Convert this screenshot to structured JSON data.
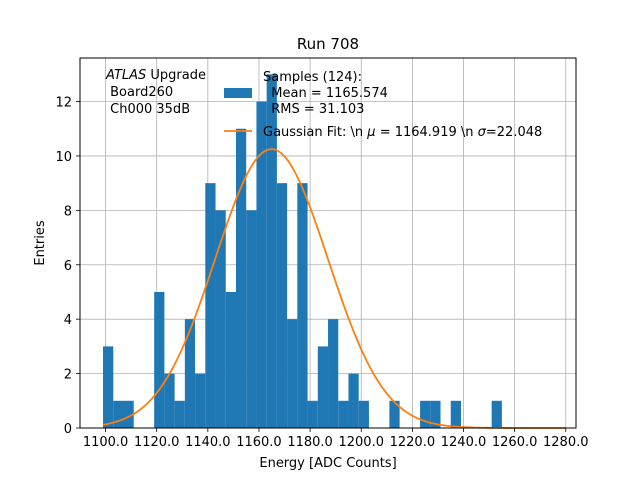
{
  "chart_data": {
    "type": "bar",
    "title": "Run 708",
    "xlabel": "Energy [ADC Counts]",
    "ylabel": "Entries",
    "xlim": [
      1090.0,
      1284.0
    ],
    "ylim": [
      0,
      13.6
    ],
    "grid": true,
    "legend_placement": "top-center",
    "annotation": {
      "italic": "ATLAS",
      "line1_rest": " Upgrade",
      "line2": " Board260",
      "line3": " Ch000 35dB"
    },
    "x_ticks": [
      1100.0,
      1120.0,
      1140.0,
      1160.0,
      1180.0,
      1200.0,
      1220.0,
      1240.0,
      1260.0,
      1280.0
    ],
    "x_tick_labels": [
      "1100.0",
      "1120.0",
      "1140.0",
      "1160.0",
      "1180.0",
      "1200.0",
      "1220.0",
      "1240.0",
      "1260.0",
      "1280.0"
    ],
    "y_ticks": [
      0,
      2,
      4,
      6,
      8,
      10,
      12
    ],
    "y_tick_labels": [
      "0",
      "2",
      "4",
      "6",
      "8",
      "10",
      "12"
    ],
    "bins": {
      "start": 1099.01,
      "width": 4.0,
      "counts": [
        3,
        1,
        1,
        0,
        0,
        5,
        2,
        1,
        4,
        2,
        9,
        8,
        5,
        11,
        8,
        12,
        13,
        9,
        4,
        9,
        1,
        3,
        4,
        1,
        2,
        1,
        0,
        0,
        1,
        0,
        0,
        1,
        1,
        0,
        1,
        0,
        0,
        0,
        1
      ]
    },
    "series": [
      {
        "name": "Samples (124):\n  Mean = 1165.574\n  RMS = 31.103",
        "type": "histogram",
        "color": "#1f77b4"
      },
      {
        "name": "Gaussian Fit: \\n $\\mu$ = 1164.919 \\n $\\sigma$=22.048",
        "type": "line",
        "color": "#ff7f0e",
        "mu": 1164.919,
        "sigma": 22.048,
        "amplitude": 10.25,
        "x_range": [
          1099.01,
          1280.0
        ]
      }
    ],
    "legend": {
      "samples_lines": [
        "Samples (124):",
        "  Mean = 1165.574",
        "  RMS = 31.103"
      ],
      "fit_label_parts": [
        "Gaussian Fit: \\n ",
        "μ",
        " = 1164.919 \\n ",
        "σ",
        "=22.048"
      ]
    }
  }
}
